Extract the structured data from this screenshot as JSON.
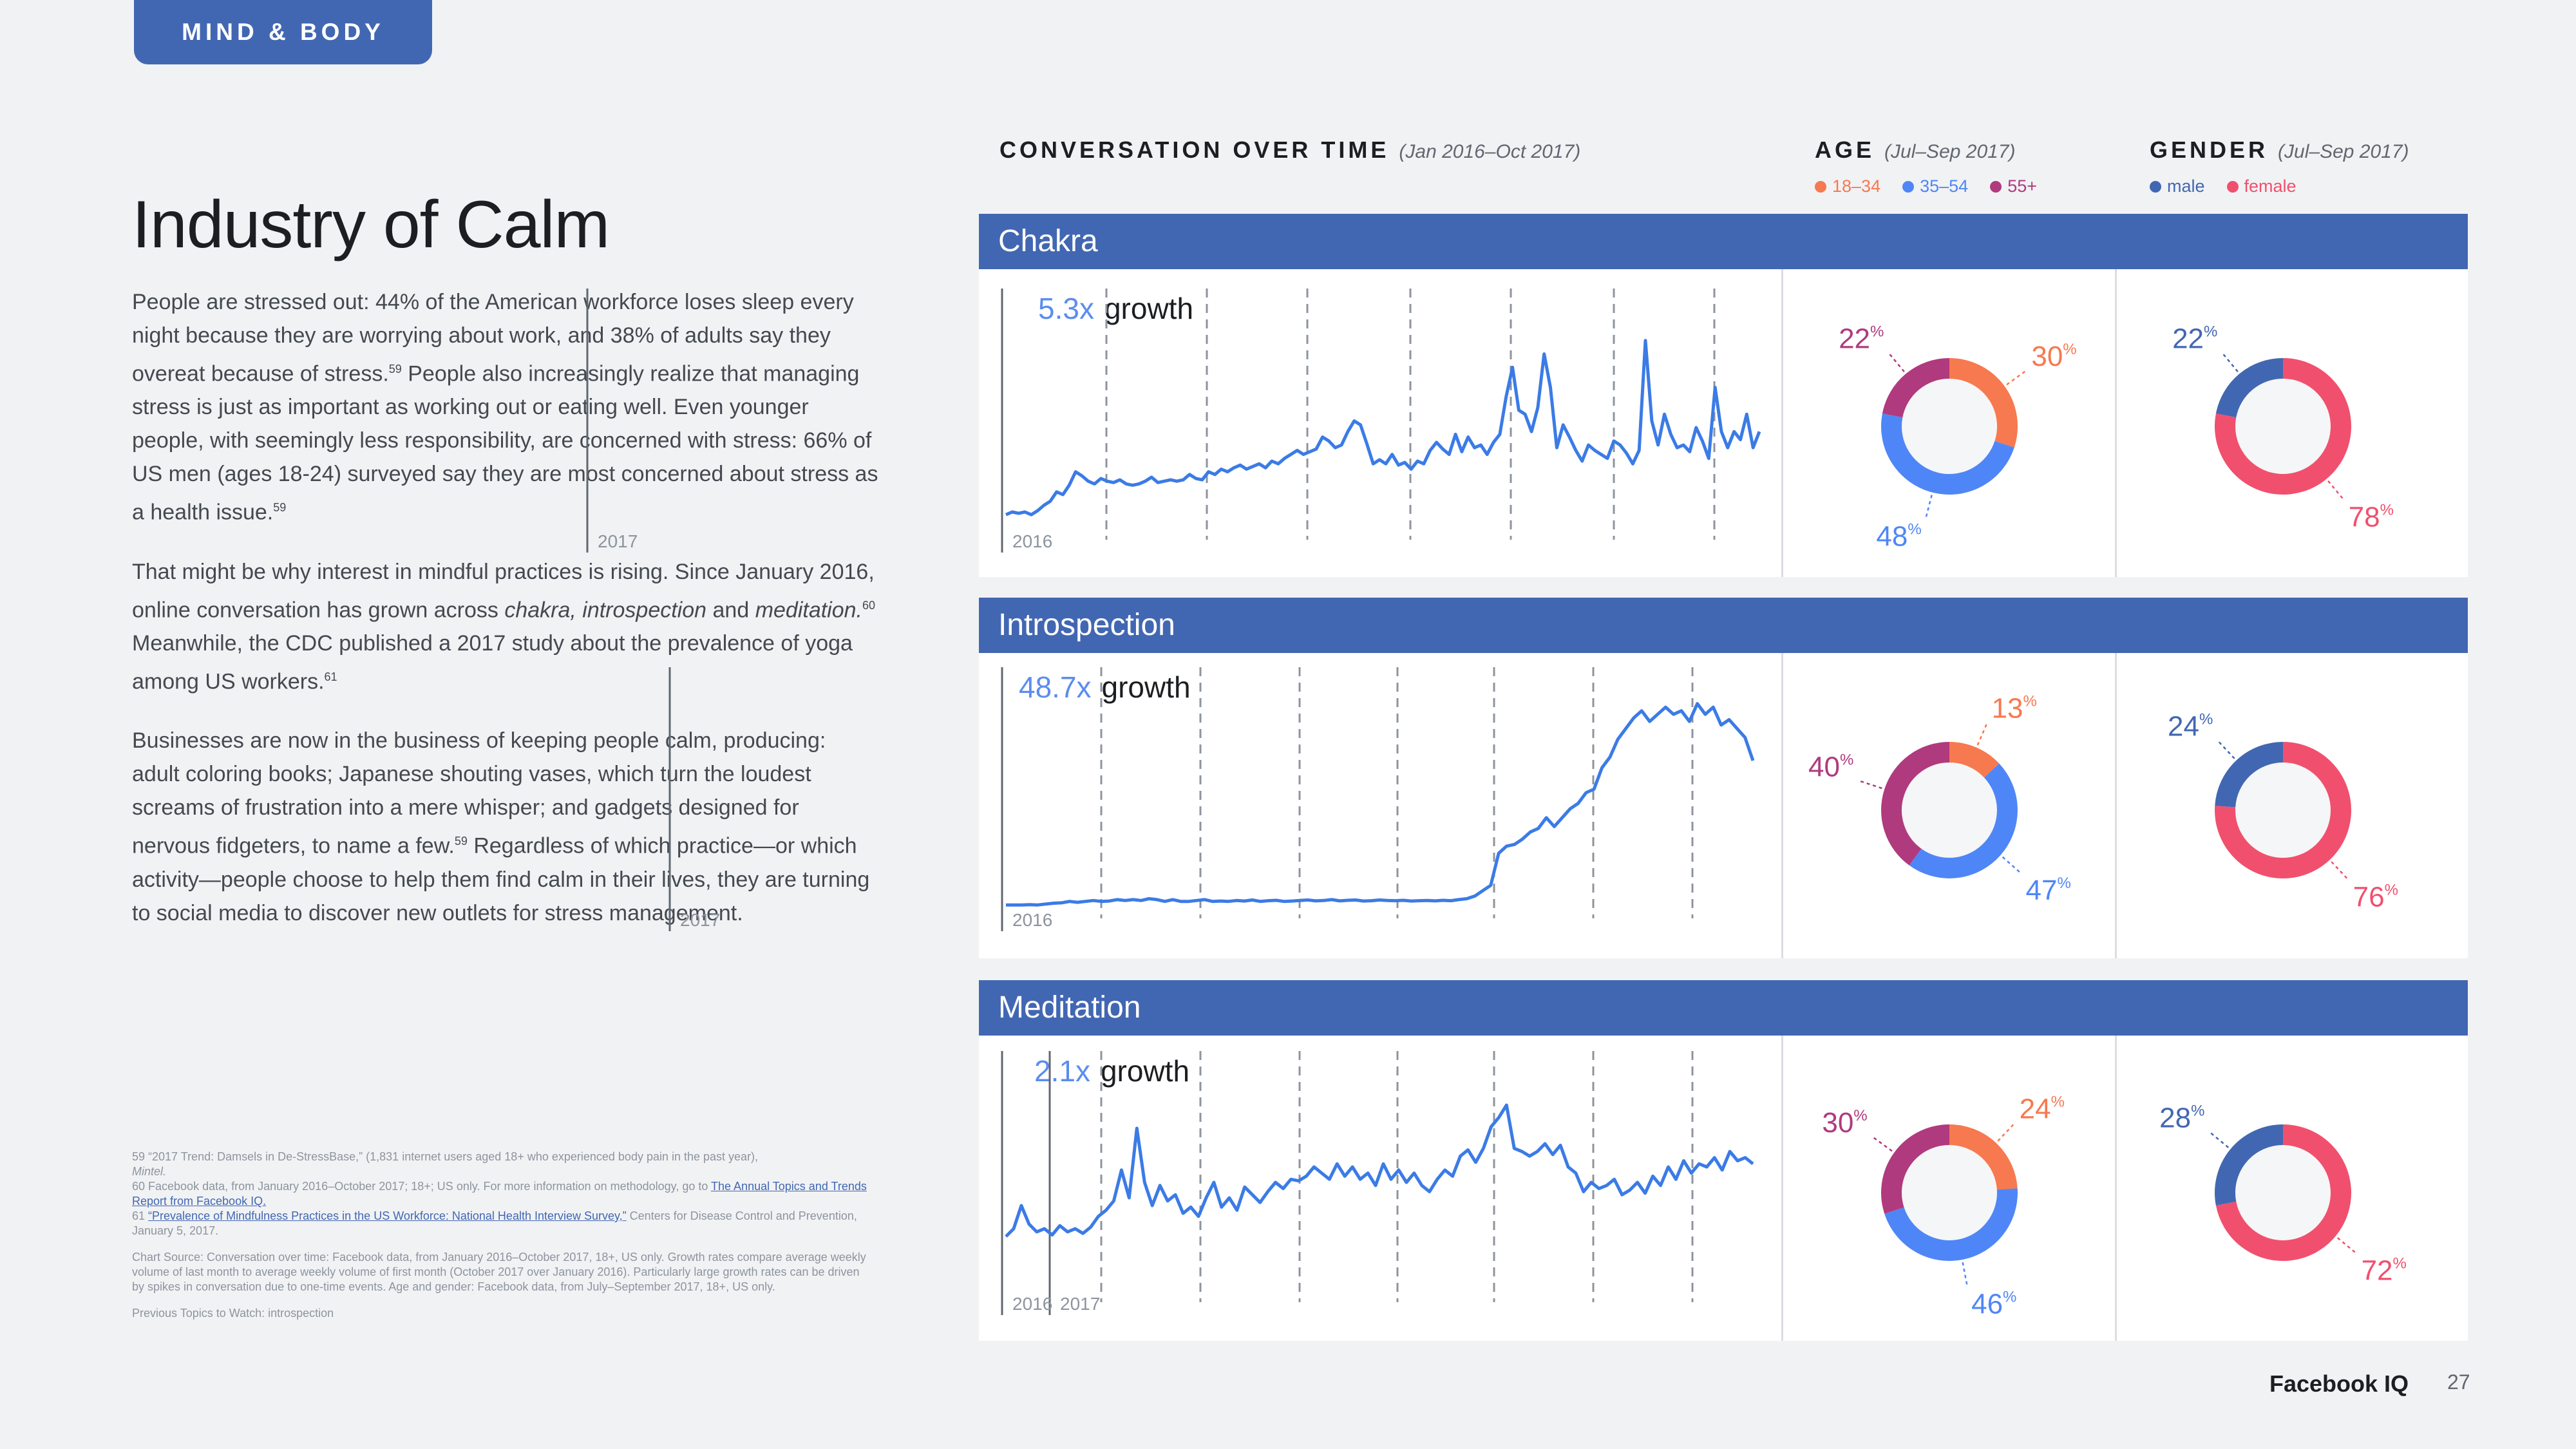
{
  "section_tab": "MIND & BODY",
  "title": "Industry of Calm",
  "paragraphs": {
    "p1a": "People are stressed out: 44% of the American workforce loses sleep every night because they are worrying about work, and 38% of adults say they overeat because of stress.",
    "p1_sup1": "59",
    "p1b": " People also increasingly realize that managing stress is just as important as working out or eating well. Even younger people, with seemingly less responsibility, are concerned with stress: 66% of US men (ages 18-24) surveyed say they are most concerned about stress as a health issue.",
    "p1_sup2": "59",
    "p2a": "That might be why interest in mindful practices is rising. Since January 2016, online conversation has grown across ",
    "p2_italic": "chakra, introspection",
    "p2b": " and ",
    "p2_italic2": "meditation.",
    "p2_sup1": "60",
    "p2c": " Meanwhile, the CDC published a 2017 study about the prevalence of yoga among US workers.",
    "p2_sup2": "61",
    "p3a": "Businesses are now in the business of keeping people calm, producing: adult coloring books; Japanese shouting vases, which turn the loudest screams of frustration into a mere whisper; and gadgets designed for nervous fidgeters, to name a few.",
    "p3_sup": "59",
    "p3b": " Regardless of which practice—or which activity—people choose to help them find calm in their lives, they are turning to social media to discover new outlets for stress management."
  },
  "footnotes": {
    "n59a": "59  “2017 Trend: Damsels in De-StressBase,” (1,831 internet users aged 18+ who experienced body pain in the past year),",
    "n59b": "Mintel.",
    "n60a": "60  Facebook data, from January 2016–October 2017; 18+; US only. For more information on methodology, go to ",
    "n60_link": "The Annual Topics and Trends Report from Facebook IQ.",
    "n61_num": "61  ",
    "n61_link": "“Prevalence of Mindfulness Practices in the US Workforce: National Health Interview Survey,”",
    "n61b": " Centers for Disease Control and Prevention, January 5, 2017.",
    "chart_source": "Chart Source: Conversation over time: Facebook data, from January 2016–October 2017, 18+, US only. Growth rates compare average weekly volume of last month to average weekly volume of first month (October 2017 over January 2016). Particularly large growth rates can be driven by spikes in conversation due to one-time events. Age and gender: Facebook data, from July–September 2017, 18+, US only.",
    "previous": "Previous Topics to Watch: introspection"
  },
  "headers": {
    "conversation": "CONVERSATION OVER TIME",
    "conversation_sub": "(Jan 2016–Oct 2017)",
    "age": "AGE",
    "age_sub": "(Jul–Sep 2017)",
    "gender": "GENDER",
    "gender_sub": "(Jul–Sep 2017)"
  },
  "legend": {
    "age": [
      {
        "label": "18–34",
        "color": "#f7794f"
      },
      {
        "label": "35–54",
        "color": "#4f86f7"
      },
      {
        "label": "55+",
        "color": "#b03a7e"
      }
    ],
    "gender": [
      {
        "label": "male",
        "color": "#4267b2"
      },
      {
        "label": "female",
        "color": "#f0506e"
      }
    ]
  },
  "colors": {
    "brand": "#4267b2",
    "line": "#3b7be6",
    "age_18_34": "#f7794f",
    "age_35_54": "#4f86f7",
    "age_55_plus": "#b03a7e",
    "male": "#4267b2",
    "female": "#f0506e"
  },
  "growth_word": "growth",
  "pct_suffix": "%",
  "year_labels": [
    "2016",
    "2017"
  ],
  "chart_data": [
    {
      "type": "line",
      "topic": "Chakra",
      "growth": "5.3x",
      "x_start": "2016-01",
      "x_end": "2017-10",
      "y_axis": "none",
      "values": [
        10,
        12,
        11,
        12,
        10,
        13,
        17,
        20,
        27,
        25,
        32,
        42,
        39,
        35,
        33,
        37,
        35,
        34,
        36,
        33,
        32,
        33,
        35,
        38,
        34,
        35,
        36,
        35,
        36,
        40,
        37,
        36,
        42,
        40,
        44,
        42,
        45,
        47,
        44,
        46,
        48,
        45,
        50,
        48,
        52,
        55,
        58,
        55,
        57,
        59,
        68,
        65,
        60,
        62,
        72,
        80,
        77,
        63,
        48,
        51,
        48,
        55,
        47,
        49,
        44,
        50,
        48,
        58,
        64,
        59,
        55,
        70,
        57,
        68,
        60,
        62,
        55,
        64,
        70,
        98,
        120,
        88,
        85,
        72,
        90,
        130,
        105,
        60,
        77,
        68,
        58,
        50,
        62,
        58,
        55,
        52,
        65,
        62,
        56,
        48,
        58,
        140,
        80,
        62,
        85,
        70,
        60,
        62,
        57,
        75,
        65,
        52,
        105,
        72,
        60,
        72,
        66,
        85,
        60,
        72
      ],
      "ymax": 150
    },
    {
      "type": "line",
      "topic": "Introspection",
      "growth": "48.7x",
      "x_start": "2016-01",
      "x_end": "2017-10",
      "y_axis": "none",
      "values": [
        1,
        1,
        1,
        1.2,
        1,
        1.5,
        2,
        2.2,
        3,
        2.5,
        3,
        3.5,
        3,
        3.2,
        4,
        3.5,
        4,
        3.5,
        4.5,
        4,
        3,
        4,
        3,
        3,
        3.5,
        4,
        3,
        3.2,
        3,
        3.5,
        3.2,
        3.8,
        3,
        3.4,
        3.6,
        3,
        3.2,
        3.5,
        3.8,
        3.3,
        3.5,
        4,
        3.3,
        3.6,
        3.8,
        3.2,
        3.4,
        3.8,
        3.5,
        3.4,
        3.6,
        3.2,
        3.4,
        3.5,
        3.3,
        3.6,
        3.4,
        4,
        4.5,
        6,
        9,
        12,
        30,
        34,
        35,
        38,
        42,
        44,
        50,
        45,
        50,
        55,
        58,
        64,
        66,
        78,
        84,
        94,
        100,
        106,
        110,
        104,
        108,
        112,
        108,
        110,
        104,
        114,
        108,
        112,
        102,
        105,
        100,
        95,
        82
      ],
      "ymax": 120
    },
    {
      "type": "line",
      "topic": "Meditation",
      "growth": "2.1x",
      "x_start": "2016-01",
      "x_end": "2017-10",
      "y_axis": "none",
      "values": [
        35,
        40,
        55,
        43,
        38,
        40,
        36,
        42,
        38,
        40,
        37,
        41,
        48,
        52,
        58,
        78,
        60,
        105,
        70,
        55,
        68,
        58,
        62,
        50,
        54,
        48,
        60,
        70,
        54,
        60,
        52,
        67,
        62,
        57,
        64,
        70,
        66,
        72,
        71,
        74,
        80,
        76,
        72,
        82,
        74,
        80,
        72,
        76,
        68,
        82,
        72,
        78,
        70,
        76,
        68,
        64,
        72,
        78,
        74,
        87,
        91,
        83,
        92,
        106,
        112,
        120,
        92,
        90,
        87,
        90,
        95,
        88,
        94,
        80,
        76,
        64,
        70,
        66,
        68,
        72,
        62,
        65,
        70,
        63,
        74,
        68,
        80,
        72,
        84,
        76,
        82,
        80,
        86,
        78,
        90,
        84,
        86,
        82
      ],
      "ymax": 130
    }
  ],
  "donuts": [
    {
      "topic": "Chakra",
      "age": [
        {
          "label": "18–34",
          "value": 30
        },
        {
          "label": "35–54",
          "value": 48
        },
        {
          "label": "55+",
          "value": 22
        }
      ],
      "gender": [
        {
          "label": "male",
          "value": 22
        },
        {
          "label": "female",
          "value": 78
        }
      ]
    },
    {
      "topic": "Introspection",
      "age": [
        {
          "label": "18–34",
          "value": 13
        },
        {
          "label": "35–54",
          "value": 47
        },
        {
          "label": "55+",
          "value": 40
        }
      ],
      "gender": [
        {
          "label": "male",
          "value": 24
        },
        {
          "label": "female",
          "value": 76
        }
      ]
    },
    {
      "topic": "Meditation",
      "age": [
        {
          "label": "18–34",
          "value": 24
        },
        {
          "label": "35–54",
          "value": 46
        },
        {
          "label": "55+",
          "value": 30
        }
      ],
      "gender": [
        {
          "label": "male",
          "value": 28
        },
        {
          "label": "female",
          "value": 72
        }
      ]
    }
  ],
  "footer": {
    "brand": "Facebook IQ",
    "page": "27"
  }
}
